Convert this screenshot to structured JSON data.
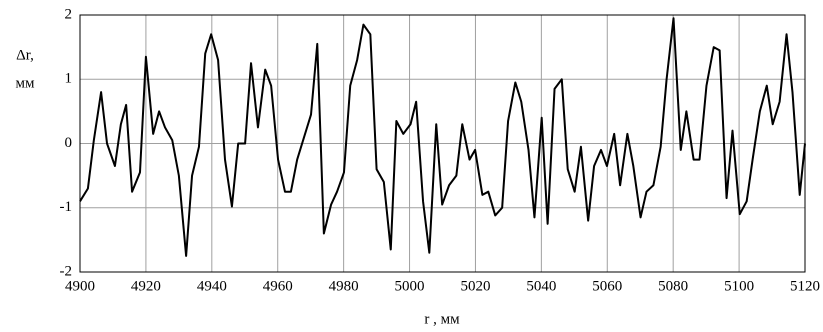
{
  "chart_data": {
    "type": "line",
    "y_label_lines": [
      "Δr,",
      "мм"
    ],
    "x_label": "r , мм",
    "xlim": [
      4900,
      5120
    ],
    "xticks": [
      4900,
      4920,
      4940,
      4960,
      4980,
      5000,
      5020,
      5040,
      5060,
      5080,
      5100,
      5120
    ],
    "ylim": [
      -2,
      2
    ],
    "yticks": [
      -2,
      -1,
      0,
      1,
      2
    ],
    "grid": true,
    "series": [
      {
        "name": null,
        "color": "#000000",
        "x": [
          4900,
          4902.4,
          4904.2,
          4906.4,
          4908.2,
          4910.6,
          4912.4,
          4914,
          4915.8,
          4918.2,
          4920,
          4922.2,
          4924,
          4925.8,
          4928,
          4930,
          4932.2,
          4934,
          4936.1,
          4938,
          4939.8,
          4941.9,
          4944,
          4946.1,
          4948,
          4950.1,
          4951.9,
          4954,
          4956.2,
          4958,
          4960.1,
          4962.2,
          4964,
          4965.9,
          4968,
          4970.1,
          4972,
          4974,
          4976.2,
          4978,
          4980.1,
          4982,
          4984.1,
          4986,
          4988.1,
          4990,
          4992.2,
          4994.3,
          4996,
          4998.1,
          5000.3,
          5002,
          5004.1,
          5006,
          5008.1,
          5009.9,
          5012,
          5014.2,
          5016,
          5018.2,
          5019.9,
          5022.1,
          5023.9,
          5026,
          5028.1,
          5029.9,
          5032.1,
          5033.9,
          5036.1,
          5037.9,
          5040.1,
          5041.9,
          5044,
          5046.2,
          5048,
          5050.1,
          5052,
          5054.2,
          5056,
          5058.1,
          5059.9,
          5062.1,
          5063.9,
          5066.1,
          5067.9,
          5070.1,
          5071.9,
          5074,
          5076.2,
          5078,
          5080.1,
          5082.3,
          5084,
          5086.2,
          5088,
          5090.1,
          5092.3,
          5094.1,
          5096.2,
          5098,
          5100.2,
          5102.3,
          5104.1,
          5106.3,
          5108.4,
          5110.2,
          5112.3,
          5114.4,
          5116.2,
          5118.4,
          5120
        ],
        "values": [
          -0.9,
          -0.7,
          0.05,
          0.8,
          0,
          -0.35,
          0.3,
          0.6,
          -0.75,
          -0.45,
          1.35,
          0.15,
          0.5,
          0.25,
          0.05,
          -0.5,
          -1.75,
          -0.5,
          -0.05,
          1.4,
          1.7,
          1.3,
          -0.25,
          -0.98,
          0,
          0,
          1.25,
          0.25,
          1.15,
          0.9,
          -0.25,
          -0.75,
          -0.75,
          -0.25,
          0.1,
          0.45,
          1.55,
          -1.4,
          -0.95,
          -0.75,
          -0.45,
          0.9,
          1.3,
          1.85,
          1.7,
          -0.4,
          -0.6,
          -1.65,
          0.35,
          0.15,
          0.3,
          0.65,
          -0.9,
          -1.7,
          0.3,
          -0.95,
          -0.65,
          -0.5,
          0.3,
          -0.25,
          -0.1,
          -0.8,
          -0.75,
          -1.12,
          -1,
          0.35,
          0.95,
          0.65,
          -0.1,
          -1.15,
          0.4,
          -1.25,
          0.85,
          1,
          -0.4,
          -0.75,
          -0.05,
          -1.2,
          -0.35,
          -0.1,
          -0.35,
          0.15,
          -0.65,
          0.15,
          -0.35,
          -1.15,
          -0.75,
          -0.65,
          -0.05,
          1,
          1.95,
          -0.1,
          0.5,
          -0.25,
          -0.25,
          0.9,
          1.5,
          1.45,
          -0.85,
          0.2,
          -1.1,
          -0.9,
          -0.25,
          0.5,
          0.9,
          0.3,
          0.65,
          1.7,
          0.8,
          -0.8,
          0
        ]
      }
    ]
  }
}
